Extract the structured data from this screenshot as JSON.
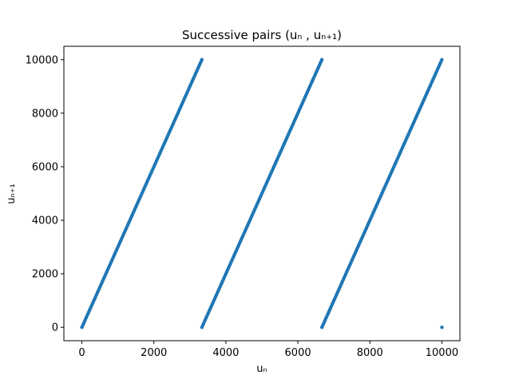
{
  "chart_data": {
    "type": "scatter",
    "title": "Successive pairs (uₙ , uₙ₊₁)",
    "xlabel": "uₙ",
    "ylabel": "uₙ₊₁",
    "xlim": [
      -500,
      10500
    ],
    "ylim": [
      -500,
      10500
    ],
    "xticks": [
      0,
      2000,
      4000,
      6000,
      8000,
      10000
    ],
    "yticks": [
      0,
      2000,
      4000,
      6000,
      8000,
      10000
    ],
    "grid": false,
    "point_color": "#1f77b4",
    "series": [
      {
        "relation": "uₙ₊₁ = 3·uₙ mod 10000",
        "segments": [
          {
            "x": [
              0,
              3333
            ],
            "y": [
              0,
              9999
            ]
          },
          {
            "x": [
              3334,
              6666
            ],
            "y": [
              2,
              9998
            ]
          },
          {
            "x": [
              6667,
              9999
            ],
            "y": [
              1,
              9997
            ]
          }
        ],
        "outliers": [
          {
            "x": 10000,
            "y": 0
          }
        ]
      }
    ]
  }
}
